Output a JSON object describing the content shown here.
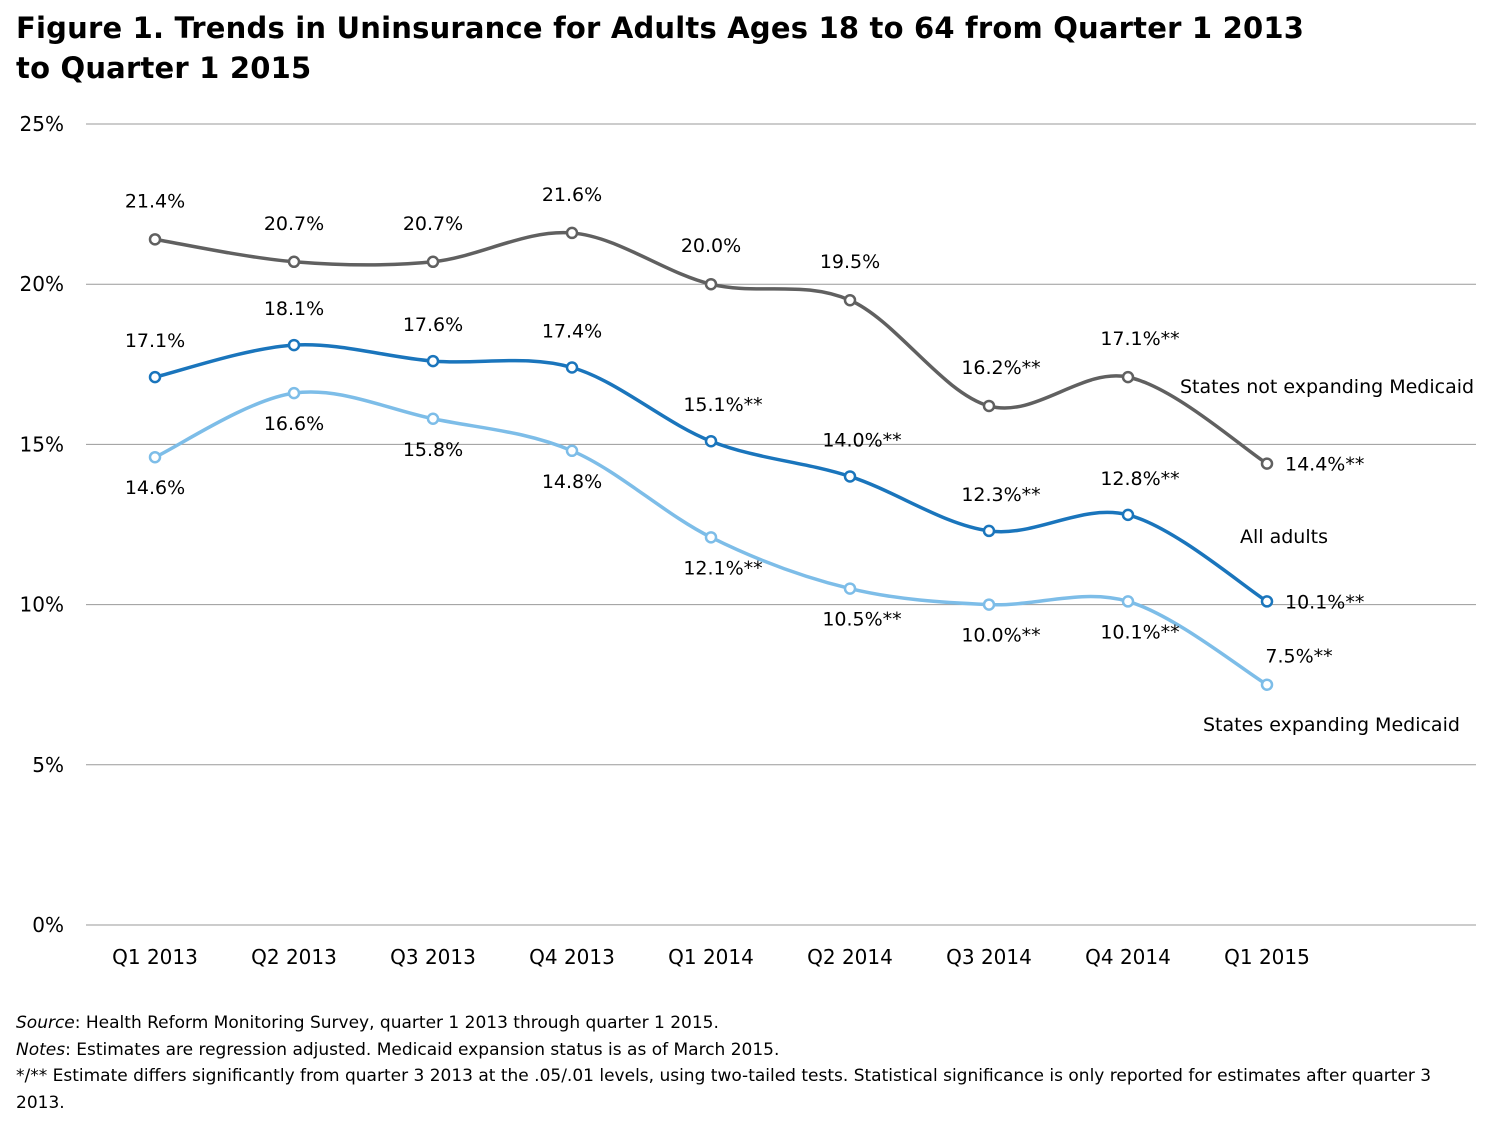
{
  "chart_data": {
    "type": "line",
    "title": "Figure 1. Trends in Uninsurance for Adults Ages 18 to 64 from Quarter 1 2013 to Quarter 1 2015",
    "xlabel": "",
    "ylabel": "",
    "ylim": [
      0,
      25
    ],
    "yticks": [
      "0%",
      "5%",
      "10%",
      "15%",
      "20%",
      "25%"
    ],
    "ytick_values": [
      0,
      5,
      10,
      15,
      20,
      25
    ],
    "grid": true,
    "categories": [
      "Q1 2013",
      "Q2 2013",
      "Q3 2013",
      "Q4 2013",
      "Q1 2014",
      "Q2 2014",
      "Q3 2014",
      "Q4 2014",
      "Q1 2015"
    ],
    "series": [
      {
        "name": "States not expanding Medicaid",
        "color": "#606060",
        "values": [
          21.4,
          20.7,
          20.7,
          21.6,
          20.0,
          19.5,
          16.2,
          17.1,
          14.4
        ],
        "labels": [
          "21.4%",
          "20.7%",
          "20.7%",
          "21.6%",
          "20.0%",
          "19.5%",
          "16.2%**",
          "17.1%**",
          "14.4%**"
        ]
      },
      {
        "name": "All adults",
        "color": "#1a75bc",
        "values": [
          17.1,
          18.1,
          17.6,
          17.4,
          15.1,
          14.0,
          12.3,
          12.8,
          10.1
        ],
        "labels": [
          "17.1%",
          "18.1%",
          "17.6%",
          "17.4%",
          "15.1%**",
          "14.0%**",
          "12.3%**",
          "12.8%**",
          "10.1%**"
        ]
      },
      {
        "name": "States expanding Medicaid",
        "color": "#7dbde8",
        "values": [
          14.6,
          16.6,
          15.8,
          14.8,
          12.1,
          10.5,
          10.0,
          10.1,
          7.5
        ],
        "labels": [
          "14.6%",
          "16.6%",
          "15.8%",
          "14.8%",
          "12.1%**",
          "10.5%**",
          "10.0%**",
          "10.1%**",
          "7.5%**"
        ]
      }
    ]
  },
  "notes": {
    "source_label": "Source",
    "source_text": ": Health Reform Monitoring Survey, quarter 1 2013 through quarter 1 2015.",
    "notes_label": "Notes",
    "notes_text": ": Estimates are regression adjusted. Medicaid expansion status is as of March 2015.",
    "significance": "*/** Estimate differs significantly from quarter 3 2013 at the .05/.01 levels, using two-tailed tests. Statistical significance is only reported for estimates after quarter 3 2013."
  }
}
